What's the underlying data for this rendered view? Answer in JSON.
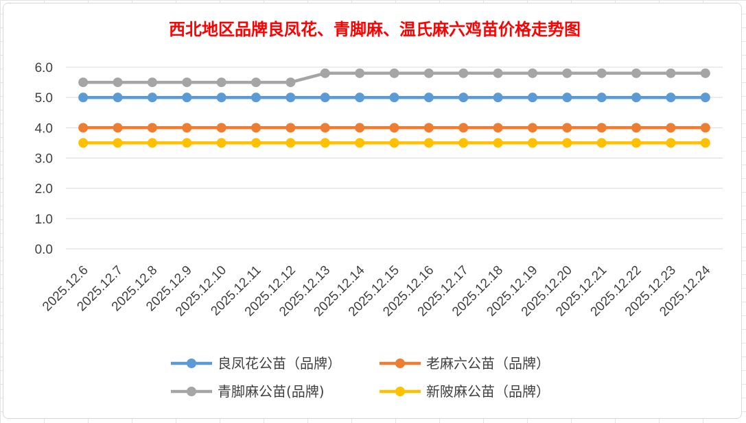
{
  "chart_data": {
    "type": "line",
    "title": "西北地区品牌良凤花、青脚麻、温氏麻六鸡苗价格走势图",
    "title_color": "#ff0000",
    "xlabel": "",
    "ylabel": "",
    "ylim": [
      0,
      6
    ],
    "yticks": [
      "0.0",
      "1.0",
      "2.0",
      "3.0",
      "4.0",
      "5.0",
      "6.0"
    ],
    "grid": true,
    "legend_position": "bottom",
    "categories": [
      "2025.12.6",
      "2025.12.7",
      "2025.12.8",
      "2025.12.9",
      "2025.12.10",
      "2025.12.11",
      "2025.12.12",
      "2025.12.13",
      "2025.12.14",
      "2025.12.15",
      "2025.12.16",
      "2025.12.17",
      "2025.12.18",
      "2025.12.19",
      "2025.12.20",
      "2025.12.21",
      "2025.12.22",
      "2025.12.23",
      "2025.12.24"
    ],
    "series": [
      {
        "name": "良凤花公苗（品牌）",
        "color": "#5b9bd5",
        "values": [
          5.0,
          5.0,
          5.0,
          5.0,
          5.0,
          5.0,
          5.0,
          5.0,
          5.0,
          5.0,
          5.0,
          5.0,
          5.0,
          5.0,
          5.0,
          5.0,
          5.0,
          5.0,
          5.0
        ]
      },
      {
        "name": "老麻六公苗（品牌）",
        "color": "#ed7d31",
        "values": [
          4.0,
          4.0,
          4.0,
          4.0,
          4.0,
          4.0,
          4.0,
          4.0,
          4.0,
          4.0,
          4.0,
          4.0,
          4.0,
          4.0,
          4.0,
          4.0,
          4.0,
          4.0,
          4.0
        ]
      },
      {
        "name": "青脚麻公苗(品牌)",
        "color": "#a5a5a5",
        "values": [
          5.5,
          5.5,
          5.5,
          5.5,
          5.5,
          5.5,
          5.5,
          5.8,
          5.8,
          5.8,
          5.8,
          5.8,
          5.8,
          5.8,
          5.8,
          5.8,
          5.8,
          5.8,
          5.8
        ]
      },
      {
        "name": "新陂麻公苗（品牌）",
        "color": "#ffc000",
        "values": [
          3.5,
          3.5,
          3.5,
          3.5,
          3.5,
          3.5,
          3.5,
          3.5,
          3.5,
          3.5,
          3.5,
          3.5,
          3.5,
          3.5,
          3.5,
          3.5,
          3.5,
          3.5,
          3.5
        ]
      }
    ]
  }
}
